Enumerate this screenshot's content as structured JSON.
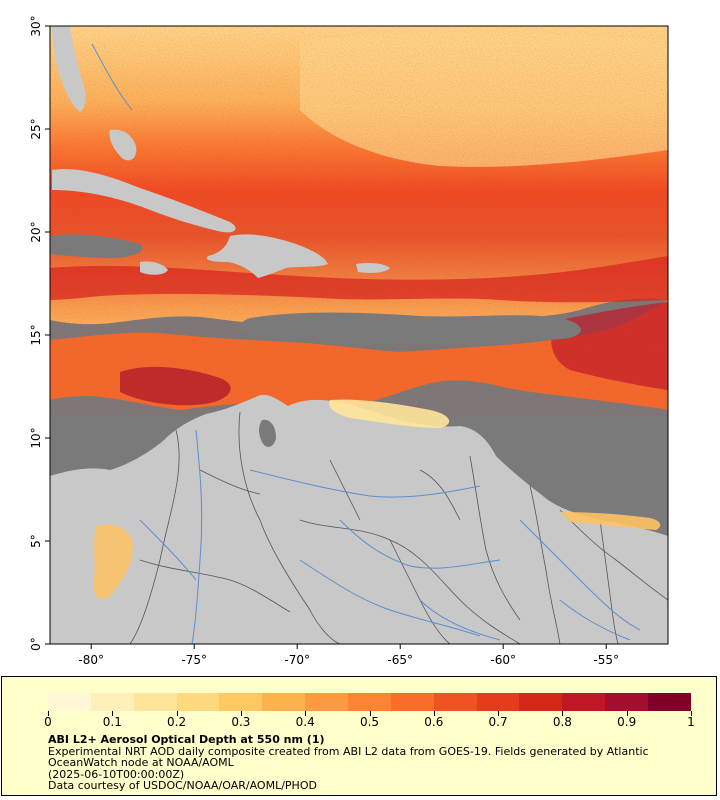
{
  "map": {
    "axis": {
      "longitude_labels": [
        "-80°",
        "-75°",
        "-70°",
        "-65°",
        "-60°",
        "-55°"
      ],
      "longitude_values": [
        -80,
        -75,
        -70,
        -65,
        -60,
        -55
      ],
      "latitude_labels": [
        "0°",
        "5°",
        "10°",
        "15°",
        "20°",
        "25°",
        "30°"
      ],
      "latitude_values": [
        0,
        5,
        10,
        15,
        20,
        25,
        30
      ],
      "lon_range": [
        -82,
        -52
      ],
      "lat_range": [
        0,
        30
      ]
    },
    "colors": {
      "no_data": "#7a7a7a",
      "land": "#c8c8c8",
      "rivers": "#5b8fd0",
      "borders": "#555555"
    }
  },
  "legend": {
    "colorbar": {
      "min": 0,
      "max": 1,
      "tick_labels": [
        "0",
        "0.1",
        "0.2",
        "0.3",
        "0.4",
        "0.5",
        "0.6",
        "0.7",
        "0.8",
        "0.9",
        "1"
      ],
      "colors": [
        "#fff7d6",
        "#ffefb8",
        "#ffe599",
        "#ffd97e",
        "#ffc862",
        "#feb24c",
        "#fd9b41",
        "#fc8433",
        "#fb6b2a",
        "#f25222",
        "#e63b1d",
        "#d62618",
        "#c21525",
        "#a50c2e",
        "#800026"
      ]
    },
    "title": "ABI L2+ Aerosol Optical Depth at 550 nm (1)",
    "lines": [
      "Experimental NRT AOD daily composite created from ABI L2 data from GOES-19. Fields generated by Atlantic",
      "OceanWatch node at NOAA/AOML",
      "(2025-06-10T00:00:00Z)",
      "Data courtesy of USDOC/NOAA/OAR/AOML/PHOD"
    ]
  }
}
